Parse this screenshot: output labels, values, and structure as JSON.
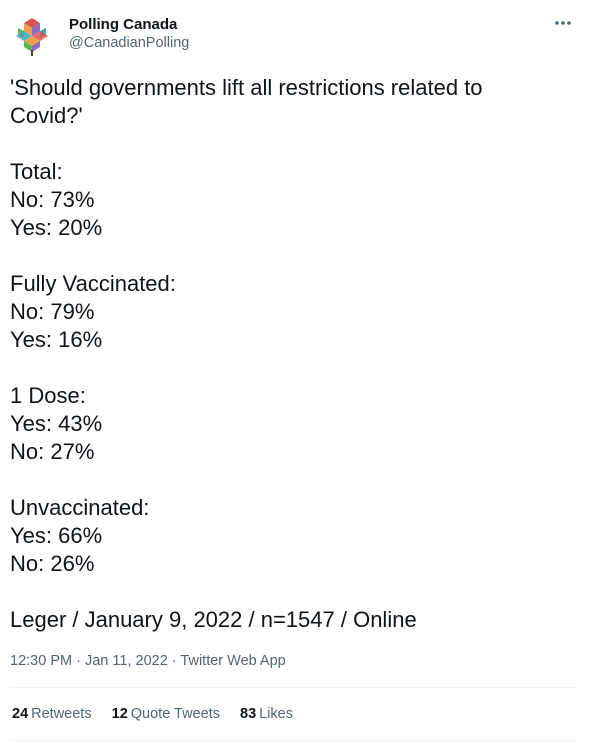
{
  "author": {
    "display_name": "Polling Canada",
    "handle": "@CanadianPolling",
    "avatar_icon": "polling-canada-maple-logo-icon"
  },
  "more_icon": "more-horizontal-icon",
  "tweet": {
    "lines": [
      "'Should governments lift all restrictions related to",
      "Covid?'",
      "",
      "Total:",
      "No: 73%",
      "Yes: 20%",
      "",
      "Fully Vaccinated:",
      "No: 79%",
      "Yes: 16%",
      "",
      "1 Dose:",
      "Yes: 43%",
      "No: 27%",
      "",
      "Unvaccinated:",
      "Yes: 66%",
      "No: 26%",
      "",
      "Leger / January 9, 2022 / n=1547 / Online"
    ]
  },
  "meta": {
    "time": "12:30 PM",
    "separator": "·",
    "date": "Jan 11, 2022",
    "source": "Twitter Web App"
  },
  "stats": {
    "retweets_count": "24",
    "retweets_label": "Retweets",
    "quotes_count": "12",
    "quotes_label": "Quote Tweets",
    "likes_count": "83",
    "likes_label": "Likes"
  },
  "colors": {
    "text_primary": "#0f1419",
    "text_secondary": "#536471",
    "divider": "#eff3f4",
    "logo_red": "#d9534f",
    "logo_orange": "#f0a04b",
    "logo_green": "#5cb85c",
    "logo_teal": "#3aa6b9",
    "logo_purple": "#8e6bbf"
  }
}
